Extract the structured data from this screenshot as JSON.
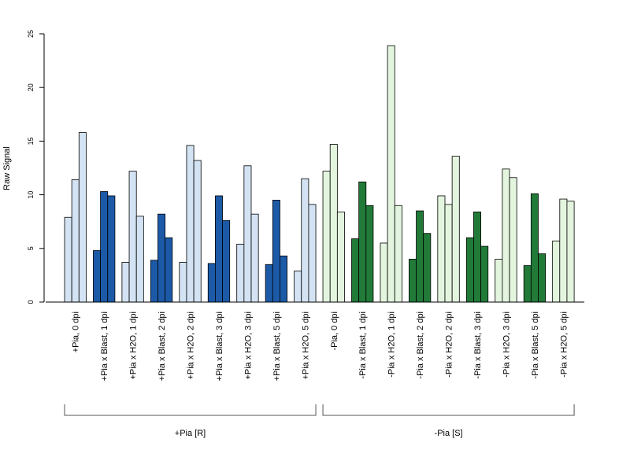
{
  "chart_data": {
    "type": "bar",
    "ylabel": "Raw Signal",
    "ylim": [
      0,
      25
    ],
    "yticks": [
      0,
      5,
      10,
      15,
      20,
      25
    ],
    "grid": false,
    "legend": "none",
    "colors": {
      "pia_plus_light": "#d3e3f3",
      "pia_plus_dark": "#1c5aa8",
      "pia_minus_light": "#e3f5de",
      "pia_minus_dark": "#217a38"
    },
    "categories": [
      {
        "label": "+Pia, 0 dpi",
        "values": [
          7.9,
          11.4,
          15.8
        ],
        "color": "pia_plus_light"
      },
      {
        "label": "+Pia x Blast, 1 dpi",
        "values": [
          4.8,
          10.3,
          9.9
        ],
        "color": "pia_plus_dark"
      },
      {
        "label": "+Pia x H2O, 1 dpi",
        "values": [
          3.7,
          12.2,
          8.0
        ],
        "color": "pia_plus_light"
      },
      {
        "label": "+Pia x Blast, 2 dpi",
        "values": [
          3.9,
          8.2,
          6.0
        ],
        "color": "pia_plus_dark"
      },
      {
        "label": "+Pia x H2O, 2 dpi",
        "values": [
          3.7,
          14.6,
          13.2
        ],
        "color": "pia_plus_light"
      },
      {
        "label": "+Pia x Blast, 3 dpi",
        "values": [
          3.6,
          9.9,
          7.6
        ],
        "color": "pia_plus_dark"
      },
      {
        "label": "+Pia x H2O, 3 dpi",
        "values": [
          5.4,
          12.7,
          8.2
        ],
        "color": "pia_plus_light"
      },
      {
        "label": "+Pia x Blast, 5 dpi",
        "values": [
          3.5,
          9.5,
          4.3
        ],
        "color": "pia_plus_dark"
      },
      {
        "label": "+Pia x H2O, 5 dpi",
        "values": [
          2.9,
          11.5,
          9.1
        ],
        "color": "pia_plus_light"
      },
      {
        "label": "-Pia, 0 dpi",
        "values": [
          12.2,
          14.7,
          8.4
        ],
        "color": "pia_minus_light"
      },
      {
        "label": "-Pia x Blast, 1 dpi",
        "values": [
          5.9,
          11.2,
          9.0
        ],
        "color": "pia_minus_dark"
      },
      {
        "label": "-Pia x H2O, 1 dpi",
        "values": [
          5.5,
          23.9,
          9.0
        ],
        "color": "pia_minus_light"
      },
      {
        "label": "-Pia x Blast, 2 dpi",
        "values": [
          4.0,
          8.5,
          6.4
        ],
        "color": "pia_minus_dark"
      },
      {
        "label": "-Pia x H2O, 2 dpi",
        "values": [
          9.9,
          9.1,
          13.6
        ],
        "color": "pia_minus_light"
      },
      {
        "label": "-Pia x Blast, 3 dpi",
        "values": [
          6.0,
          8.4,
          5.2
        ],
        "color": "pia_minus_dark"
      },
      {
        "label": "-Pia x H2O, 3 dpi",
        "values": [
          4.0,
          12.4,
          11.6
        ],
        "color": "pia_minus_light"
      },
      {
        "label": "-Pia x Blast, 5 dpi",
        "values": [
          3.4,
          10.1,
          4.5
        ],
        "color": "pia_minus_dark"
      },
      {
        "label": "-Pia x H2O, 5 dpi",
        "values": [
          5.7,
          9.6,
          9.4
        ],
        "color": "pia_minus_light"
      }
    ],
    "groups": [
      {
        "label": "+Pia [R]",
        "from": 0,
        "to": 8
      },
      {
        "label": "-Pia [S]",
        "from": 9,
        "to": 17
      }
    ]
  }
}
